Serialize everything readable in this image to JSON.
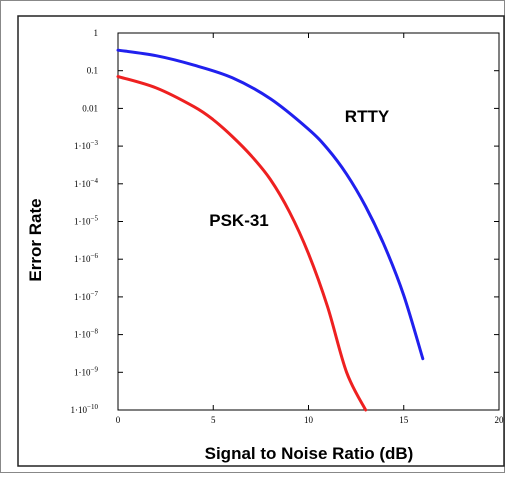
{
  "chart_data": {
    "type": "line",
    "title": "",
    "xlabel": "Signal to Noise Ratio (dB)",
    "ylabel": "Error Rate",
    "x_scale": "linear",
    "y_scale": "log",
    "xlim": [
      0,
      20
    ],
    "ylim": [
      1e-10,
      1
    ],
    "grid": false,
    "x_ticks": [
      {
        "value": 0,
        "label": "0"
      },
      {
        "value": 5,
        "label": "5"
      },
      {
        "value": 10,
        "label": "10"
      },
      {
        "value": 15,
        "label": "15"
      },
      {
        "value": 20,
        "label": "20"
      }
    ],
    "y_ticks": [
      {
        "value": 1,
        "base": "1",
        "exp": ""
      },
      {
        "value": 0.1,
        "base": "0.1",
        "exp": ""
      },
      {
        "value": 0.01,
        "base": "0.01",
        "exp": ""
      },
      {
        "value": 0.001,
        "base": "1·10",
        "exp": "−3"
      },
      {
        "value": 0.0001,
        "base": "1·10",
        "exp": "−4"
      },
      {
        "value": 1e-05,
        "base": "1·10",
        "exp": "−5"
      },
      {
        "value": 1e-06,
        "base": "1·10",
        "exp": "−6"
      },
      {
        "value": 1e-07,
        "base": "1·10",
        "exp": "−7"
      },
      {
        "value": 1e-08,
        "base": "1·10",
        "exp": "−8"
      },
      {
        "value": 1e-09,
        "base": "1·10",
        "exp": "−9"
      },
      {
        "value": 1e-10,
        "base": "1·10",
        "exp": "−10"
      }
    ],
    "series": [
      {
        "name": "RTTY",
        "color": "#2020ee",
        "x": [
          0,
          2,
          4,
          6,
          8,
          10,
          11,
          12,
          13,
          14,
          15,
          16
        ],
        "y": [
          0.35,
          0.25,
          0.14,
          0.065,
          0.018,
          0.0028,
          0.00085,
          0.00018,
          2.5e-05,
          2.2e-06,
          1.1e-07,
          2.3e-09
        ]
      },
      {
        "name": "PSK-31",
        "color": "#ee2020",
        "x": [
          0,
          2,
          4,
          5,
          6,
          7,
          8,
          9,
          10,
          11,
          12,
          13
        ],
        "y": [
          0.07,
          0.035,
          0.011,
          0.005,
          0.0018,
          0.00055,
          0.00013,
          1.8e-05,
          1.4e-06,
          5.5e-08,
          1e-09,
          1e-10
        ]
      }
    ]
  }
}
